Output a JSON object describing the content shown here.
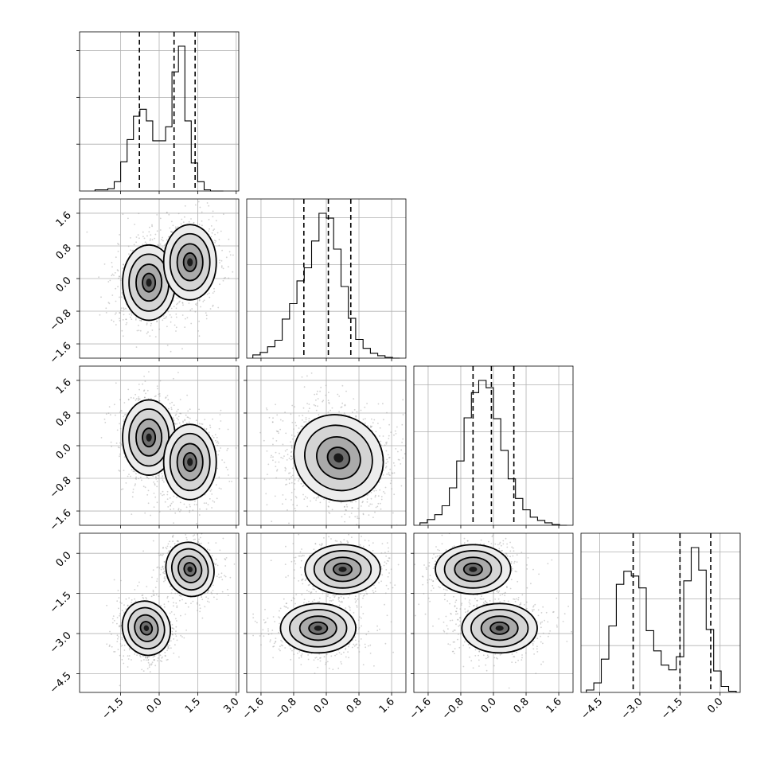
{
  "chart_data": {
    "type": "corner",
    "n_params": 4,
    "grid": true,
    "ticks": {
      "p0": {
        "values": [
          -1.5,
          0.0,
          1.5,
          3.0
        ],
        "labels": [
          "−1.5",
          "0.0",
          "1.5",
          "3.0"
        ],
        "range": [
          -3.1,
          3.1
        ]
      },
      "p1": {
        "values": [
          -1.6,
          -0.8,
          0.0,
          0.8,
          1.6
        ],
        "labels": [
          "−1.6",
          "−0.8",
          "0.0",
          "0.8",
          "1.6"
        ],
        "range": [
          -1.95,
          1.95
        ]
      },
      "p2": {
        "values": [
          -1.6,
          -0.8,
          0.0,
          0.8,
          1.6
        ],
        "labels": [
          "−1.6",
          "−0.8",
          "0.0",
          "0.8",
          "1.6"
        ],
        "range": [
          -1.95,
          1.95
        ]
      },
      "p3": {
        "values": [
          -4.5,
          -3.0,
          -1.5,
          0.0
        ],
        "labels": [
          "−4.5",
          "−3.0",
          "−1.5",
          "0.0"
        ],
        "range": [
          -5.2,
          0.75
        ]
      }
    },
    "quantiles": {
      "p0": [
        -0.77,
        0.58,
        1.4
      ],
      "p1": [
        -0.55,
        0.05,
        0.6
      ],
      "p2": [
        -0.5,
        -0.05,
        0.5
      ],
      "p3": [
        -3.25,
        -1.5,
        -0.35
      ]
    },
    "histograms": {
      "p0": {
        "bin_range": [
          -2.5,
          2.5
        ],
        "counts": [
          1,
          1,
          2,
          8,
          25,
          44,
          64,
          70,
          60,
          43,
          43,
          55,
          102,
          124,
          60,
          24,
          8,
          1,
          0,
          0
        ]
      },
      "p1": {
        "bin_range": [
          -1.8,
          1.8
        ],
        "counts": [
          4,
          7,
          14,
          22,
          48,
          67,
          95,
          111,
          144,
          178,
          172,
          134,
          88,
          49,
          23,
          12,
          6,
          3,
          1,
          0
        ]
      },
      "p2": {
        "bin_range": [
          -1.8,
          1.8
        ],
        "counts": [
          3,
          7,
          13,
          24,
          46,
          79,
          132,
          163,
          178,
          169,
          131,
          92,
          57,
          33,
          19,
          10,
          6,
          3,
          1,
          0
        ]
      },
      "p3": {
        "bin_range": [
          -5.0,
          0.6
        ],
        "counts": [
          2,
          8,
          28,
          56,
          91,
          102,
          98,
          88,
          52,
          35,
          23,
          19,
          30,
          94,
          122,
          103,
          53,
          18,
          5,
          1
        ]
      }
    },
    "modes": {
      "p0_p1": [
        [
          -0.4,
          -0.1
        ],
        [
          1.2,
          0.4
        ]
      ],
      "p0_p2": [
        [
          -0.4,
          0.2
        ],
        [
          1.2,
          -0.4
        ]
      ],
      "p1_p2": [
        [
          0.3,
          -0.3
        ]
      ],
      "p0_p3": [
        [
          -0.5,
          -2.8
        ],
        [
          1.2,
          -0.6
        ]
      ],
      "p1_p3": [
        [
          -0.2,
          -2.8
        ],
        [
          0.4,
          -0.6
        ]
      ],
      "p2_p3": [
        [
          0.15,
          -2.8
        ],
        [
          -0.5,
          -0.6
        ]
      ]
    }
  }
}
